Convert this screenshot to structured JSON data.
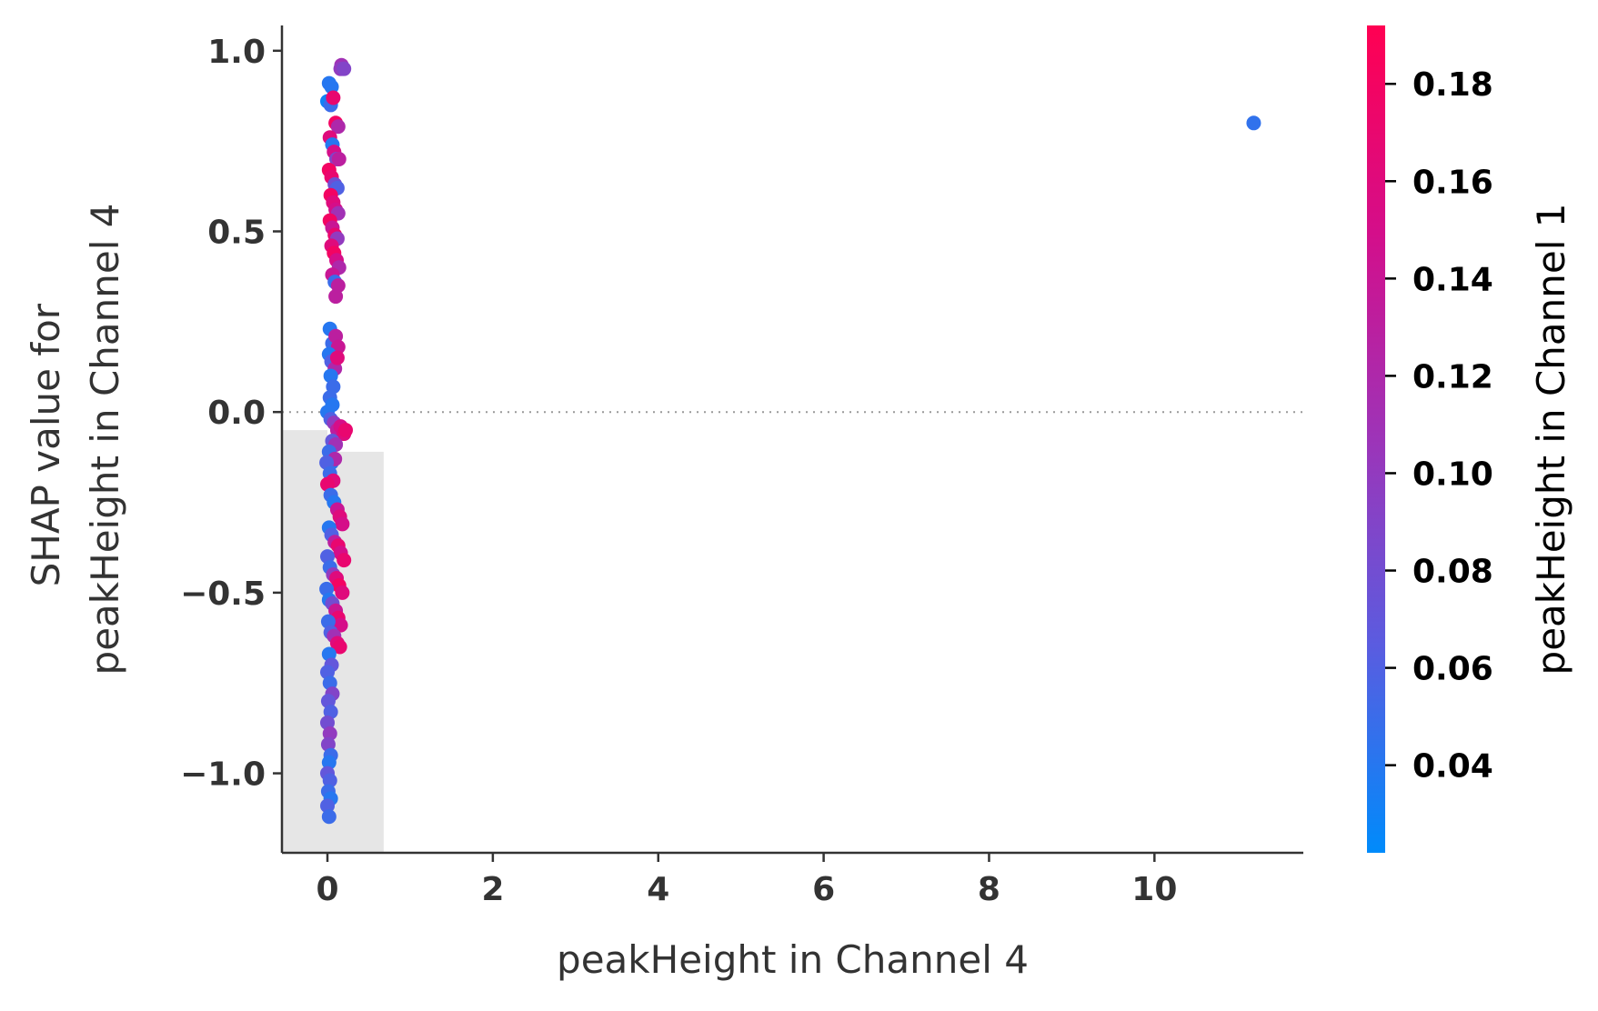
{
  "chart_data": {
    "type": "scatter",
    "title": "",
    "xlabel": "peakHeight in Channel 4",
    "ylabel_lines": [
      "SHAP value for",
      "peakHeight in Channel 4"
    ],
    "xlim": [
      -0.55,
      11.8
    ],
    "ylim": [
      -1.22,
      1.07
    ],
    "x_ticks": [
      0,
      2,
      4,
      6,
      8,
      10
    ],
    "x_tick_labels": [
      "0",
      "2",
      "4",
      "6",
      "8",
      "10"
    ],
    "y_ticks": [
      -1.0,
      -0.5,
      0.0,
      0.5,
      1.0
    ],
    "y_tick_labels": [
      "−1.0",
      "−0.5",
      "0.0",
      "0.5",
      "1.0"
    ],
    "zero_line": true,
    "grid": false,
    "histogram_background": [
      {
        "x0": -0.55,
        "x1": 0.0,
        "y_top": -0.05
      },
      {
        "x0": 0.0,
        "x1": 0.68,
        "y_top": -0.11
      }
    ],
    "colorbar": {
      "label": "peakHeight in Channel 1",
      "range": [
        0.022,
        0.192
      ],
      "ticks": [
        0.04,
        0.06,
        0.08,
        0.1,
        0.12,
        0.14,
        0.16,
        0.18
      ],
      "tick_labels": [
        "0.04",
        "0.06",
        "0.08",
        "0.10",
        "0.12",
        "0.14",
        "0.16",
        "0.18"
      ],
      "colormap": [
        "#008bfb",
        "#5a5ce0",
        "#9d34b8",
        "#d40e8a",
        "#ff0052"
      ]
    },
    "points": [
      [
        0.02,
        0.91,
        0.04
      ],
      [
        0.05,
        0.9,
        0.04
      ],
      [
        0.0,
        0.86,
        0.03
      ],
      [
        0.04,
        0.85,
        0.05
      ],
      [
        0.07,
        0.87,
        0.17
      ],
      [
        0.1,
        0.8,
        0.18
      ],
      [
        0.13,
        0.79,
        0.12
      ],
      [
        0.03,
        0.76,
        0.16
      ],
      [
        0.06,
        0.74,
        0.04
      ],
      [
        0.08,
        0.72,
        0.15
      ],
      [
        0.11,
        0.7,
        0.09
      ],
      [
        0.14,
        0.7,
        0.13
      ],
      [
        0.02,
        0.67,
        0.18
      ],
      [
        0.05,
        0.65,
        0.17
      ],
      [
        0.09,
        0.63,
        0.08
      ],
      [
        0.12,
        0.62,
        0.06
      ],
      [
        0.04,
        0.6,
        0.18
      ],
      [
        0.07,
        0.58,
        0.16
      ],
      [
        0.1,
        0.56,
        0.15
      ],
      [
        0.13,
        0.55,
        0.11
      ],
      [
        0.03,
        0.53,
        0.18
      ],
      [
        0.06,
        0.51,
        0.14
      ],
      [
        0.09,
        0.49,
        0.17
      ],
      [
        0.12,
        0.48,
        0.1
      ],
      [
        0.05,
        0.46,
        0.16
      ],
      [
        0.08,
        0.44,
        0.18
      ],
      [
        0.11,
        0.42,
        0.15
      ],
      [
        0.14,
        0.4,
        0.12
      ],
      [
        0.06,
        0.38,
        0.14
      ],
      [
        0.09,
        0.36,
        0.05
      ],
      [
        0.13,
        0.35,
        0.13
      ],
      [
        0.1,
        0.32,
        0.13
      ],
      [
        0.17,
        0.96,
        0.11
      ],
      [
        0.16,
        0.95,
        0.1
      ],
      [
        0.2,
        0.95,
        0.09
      ],
      [
        0.03,
        0.23,
        0.04
      ],
      [
        0.06,
        0.19,
        0.05
      ],
      [
        0.1,
        0.21,
        0.13
      ],
      [
        0.13,
        0.18,
        0.14
      ],
      [
        0.02,
        0.16,
        0.04
      ],
      [
        0.05,
        0.14,
        0.06
      ],
      [
        0.09,
        0.12,
        0.12
      ],
      [
        0.12,
        0.15,
        0.16
      ],
      [
        0.04,
        0.1,
        0.04
      ],
      [
        0.07,
        0.07,
        0.05
      ],
      [
        0.03,
        0.04,
        0.05
      ],
      [
        0.06,
        0.02,
        0.04
      ],
      [
        0.0,
        0.0,
        0.04
      ],
      [
        0.04,
        -0.02,
        0.06
      ],
      [
        0.08,
        -0.03,
        0.1
      ],
      [
        0.12,
        -0.05,
        0.13
      ],
      [
        0.16,
        -0.04,
        0.15
      ],
      [
        0.2,
        -0.06,
        0.16
      ],
      [
        0.22,
        -0.05,
        0.17
      ],
      [
        0.06,
        -0.08,
        0.07
      ],
      [
        0.1,
        -0.09,
        0.11
      ],
      [
        0.02,
        -0.11,
        0.05
      ],
      [
        0.05,
        -0.14,
        0.04
      ],
      [
        0.09,
        -0.13,
        0.12
      ],
      [
        -0.01,
        -0.14,
        0.06
      ],
      [
        0.03,
        -0.17,
        0.05
      ],
      [
        0.07,
        -0.19,
        0.16
      ],
      [
        0.0,
        -0.2,
        0.17
      ],
      [
        0.04,
        -0.23,
        0.05
      ],
      [
        0.08,
        -0.25,
        0.04
      ],
      [
        0.12,
        -0.27,
        0.14
      ],
      [
        0.15,
        -0.29,
        0.16
      ],
      [
        0.18,
        -0.31,
        0.15
      ],
      [
        0.02,
        -0.32,
        0.04
      ],
      [
        0.05,
        -0.34,
        0.06
      ],
      [
        0.09,
        -0.36,
        0.13
      ],
      [
        0.13,
        -0.37,
        0.17
      ],
      [
        0.16,
        -0.39,
        0.15
      ],
      [
        0.2,
        -0.41,
        0.17
      ],
      [
        0.0,
        -0.4,
        0.06
      ],
      [
        0.03,
        -0.43,
        0.05
      ],
      [
        0.07,
        -0.45,
        0.1
      ],
      [
        0.11,
        -0.46,
        0.16
      ],
      [
        0.14,
        -0.48,
        0.18
      ],
      [
        0.18,
        -0.5,
        0.16
      ],
      [
        -0.01,
        -0.49,
        0.05
      ],
      [
        0.02,
        -0.52,
        0.04
      ],
      [
        0.06,
        -0.53,
        0.08
      ],
      [
        0.1,
        -0.55,
        0.14
      ],
      [
        0.13,
        -0.57,
        0.17
      ],
      [
        0.16,
        -0.59,
        0.15
      ],
      [
        0.01,
        -0.58,
        0.05
      ],
      [
        0.04,
        -0.61,
        0.06
      ],
      [
        0.08,
        -0.62,
        0.11
      ],
      [
        0.12,
        -0.64,
        0.16
      ],
      [
        0.15,
        -0.65,
        0.17
      ],
      [
        0.02,
        -0.67,
        0.04
      ],
      [
        0.05,
        -0.7,
        0.07
      ],
      [
        0.0,
        -0.72,
        0.06
      ],
      [
        0.03,
        -0.75,
        0.05
      ],
      [
        0.06,
        -0.78,
        0.09
      ],
      [
        0.01,
        -0.8,
        0.07
      ],
      [
        0.04,
        -0.83,
        0.06
      ],
      [
        0.0,
        -0.86,
        0.08
      ],
      [
        0.03,
        -0.89,
        0.1
      ],
      [
        0.01,
        -0.92,
        0.09
      ],
      [
        0.04,
        -0.95,
        0.05
      ],
      [
        0.02,
        -0.97,
        0.04
      ],
      [
        0.0,
        -1.0,
        0.07
      ],
      [
        0.03,
        -1.02,
        0.06
      ],
      [
        0.01,
        -1.05,
        0.05
      ],
      [
        0.04,
        -1.07,
        0.04
      ],
      [
        0.0,
        -1.09,
        0.06
      ],
      [
        0.02,
        -1.12,
        0.05
      ],
      [
        11.2,
        0.8,
        0.045
      ]
    ]
  }
}
